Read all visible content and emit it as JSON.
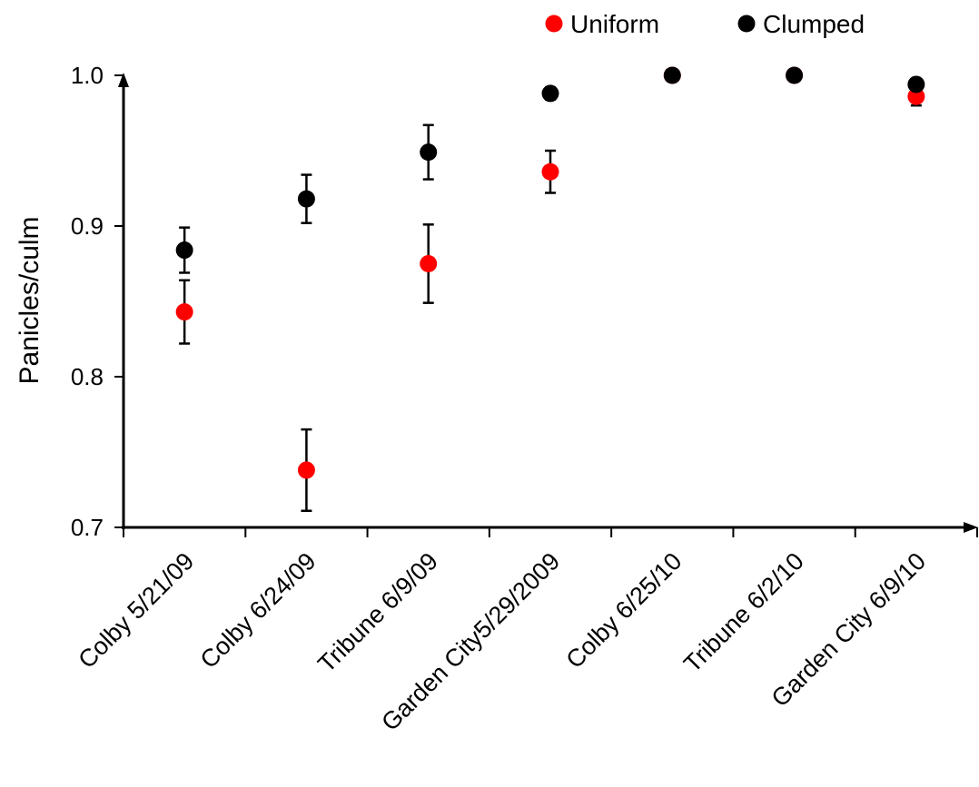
{
  "chart_data": {
    "type": "scatter",
    "title": "",
    "xlabel": "",
    "ylabel": "Panicles/culm",
    "ylim": [
      0.7,
      1.0
    ],
    "yticks": [
      "0.7",
      "0.8",
      "0.9",
      "1.0"
    ],
    "grid": false,
    "legend_position": "top",
    "categories": [
      "Colby  5/21/09",
      "Colby 6/24/09",
      "Tribune 6/9/09",
      "Garden City5/29/2009",
      "Colby 6/25/10",
      "Tribune 6/2/10",
      "Garden City 6/9/10"
    ],
    "series": [
      {
        "name": "Uniform",
        "color": "#ff0000",
        "values": [
          0.843,
          0.738,
          0.875,
          0.936,
          1.0,
          1.0,
          0.986
        ],
        "error": [
          0.021,
          0.027,
          0.026,
          0.014,
          0.0,
          0.0,
          0.006
        ]
      },
      {
        "name": "Clumped",
        "color": "#000000",
        "values": [
          0.884,
          0.918,
          0.949,
          0.988,
          1.0,
          1.0,
          0.994
        ],
        "error": [
          0.015,
          0.016,
          0.018,
          0.004,
          0.0,
          0.0,
          0.0
        ]
      }
    ]
  }
}
